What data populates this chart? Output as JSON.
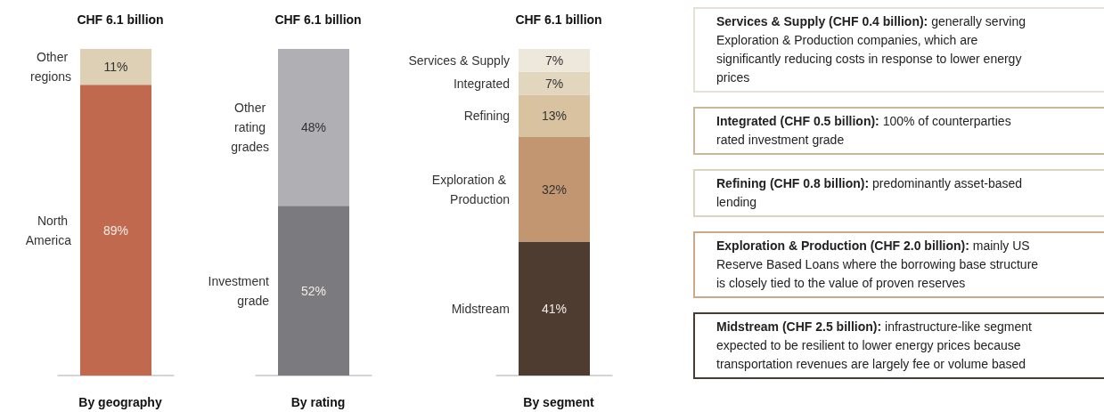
{
  "chart_data": [
    {
      "type": "bar",
      "stacked": true,
      "title": "CHF 6.1 billion",
      "xlabel": "By geography",
      "categories": [
        null
      ],
      "ylim": [
        0,
        100
      ],
      "series": [
        {
          "name": "North America",
          "color": "#c0694f",
          "values": [
            89
          ],
          "value_labels": [
            "89%"
          ]
        },
        {
          "name": "Other regions",
          "color": "#ddd0b4",
          "values": [
            11
          ],
          "value_labels": [
            "11%"
          ]
        }
      ]
    },
    {
      "type": "bar",
      "stacked": true,
      "title": "CHF 6.1 billion",
      "xlabel": "By rating",
      "categories": [
        null
      ],
      "ylim": [
        0,
        100
      ],
      "series": [
        {
          "name": "Investment grade",
          "color": "#7b7b7f",
          "values": [
            52
          ],
          "value_labels": [
            "52%"
          ]
        },
        {
          "name": "Other rating grades",
          "color": "#b0b0b4",
          "values": [
            48
          ],
          "value_labels": [
            "48%"
          ]
        }
      ]
    },
    {
      "type": "bar",
      "stacked": true,
      "title": "CHF 6.1 billion",
      "xlabel": "By segment",
      "categories": [
        null
      ],
      "ylim": [
        0,
        100
      ],
      "series": [
        {
          "name": "Midstream",
          "color": "#4e3c30",
          "values": [
            41
          ],
          "value_labels": [
            "41%"
          ]
        },
        {
          "name": "Exploration & Production",
          "color": "#c39672",
          "values": [
            32
          ],
          "value_labels": [
            "32%"
          ]
        },
        {
          "name": "Refining",
          "color": "#d8c2a0",
          "values": [
            13
          ],
          "value_labels": [
            "13%"
          ]
        },
        {
          "name": "Integrated",
          "color": "#e2d6bf",
          "values": [
            7
          ],
          "value_labels": [
            "7%"
          ]
        },
        {
          "name": "Services & Supply",
          "color": "#eee8dc",
          "values": [
            7
          ],
          "value_labels": [
            "7%"
          ]
        }
      ]
    },
    {
      "type": "other",
      "colors": [
        "#e6e1d4",
        "#cbb89a",
        "#ddd4c2",
        "#c9a989",
        "#4a3b30"
      ],
      "annotations": [
        "Services & Supply (CHF 0.4 billion): generally serving Exploration & Production companies, which are significantly reducing costs in response to lower energy prices",
        "Integrated (CHF 0.5 billion): 100% of counterparties rated investment grade",
        "Refining (CHF 0.8 billion): predominantly asset-based lending",
        "Exploration & Production (CHF 2.0 billion): mainly US Reserve Based Loans where the borrowing base structure is closely tied to the value of proven reserves",
        "Midstream (CHF 2.5 billion): infrastructure-like segment expected to be resilient to lower energy prices because transportation revenues are largely fee or volume based"
      ]
    }
  ]
}
